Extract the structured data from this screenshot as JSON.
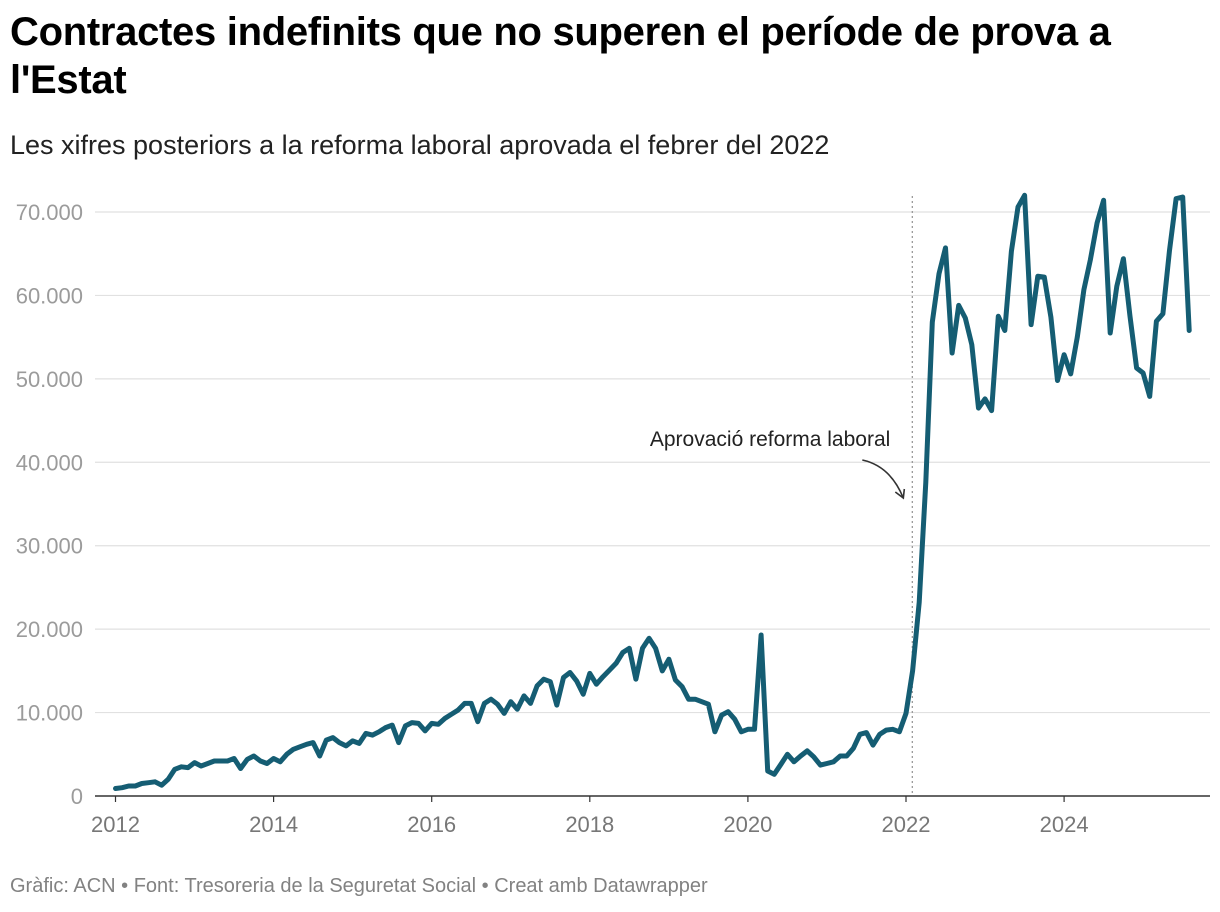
{
  "header": {
    "title": "Contractes indefinits que no superen el període de prova a l'Estat",
    "subtitle": "Les xifres posteriors a la reforma laboral aprovada el febrer del 2022"
  },
  "footer": {
    "text": "Gràfic: ACN • Font: Tresoreria de la Seguretat Social • Creat amb Datawrapper"
  },
  "colors": {
    "line": "#155d73",
    "grid": "#e1e1e1",
    "axis": "#333333",
    "reference": "#999999"
  },
  "chart_data": {
    "type": "line",
    "title": "Contractes indefinits que no superen el període de prova a l'Estat",
    "subtitle": "Les xifres posteriors a la reforma laboral aprovada el febrer del 2022",
    "xlabel": "",
    "ylabel": "",
    "xlim": [
      2012,
      2025.75
    ],
    "ylim": [
      0,
      72000
    ],
    "grid": true,
    "y_ticks": [
      0,
      10000,
      20000,
      30000,
      40000,
      50000,
      60000,
      70000
    ],
    "y_tick_labels": [
      "0",
      "10.000",
      "20.000",
      "30.000",
      "40.000",
      "50.000",
      "60.000",
      "70.000"
    ],
    "x_ticks": [
      2012,
      2014,
      2016,
      2018,
      2020,
      2022,
      2024
    ],
    "x_tick_labels": [
      "2012",
      "2014",
      "2016",
      "2018",
      "2020",
      "2022",
      "2024"
    ],
    "reference_line": {
      "x": 2022.08,
      "label": "Aprovació reforma laboral"
    },
    "series": [
      {
        "name": "Contractes indefinits que no superen el període de prova",
        "x": [
          2012.0,
          2012.083,
          2012.167,
          2012.25,
          2012.333,
          2012.417,
          2012.5,
          2012.583,
          2012.667,
          2012.75,
          2012.833,
          2012.917,
          2013.0,
          2013.083,
          2013.167,
          2013.25,
          2013.333,
          2013.417,
          2013.5,
          2013.583,
          2013.667,
          2013.75,
          2013.833,
          2013.917,
          2014.0,
          2014.083,
          2014.167,
          2014.25,
          2014.333,
          2014.417,
          2014.5,
          2014.583,
          2014.667,
          2014.75,
          2014.833,
          2014.917,
          2015.0,
          2015.083,
          2015.167,
          2015.25,
          2015.333,
          2015.417,
          2015.5,
          2015.583,
          2015.667,
          2015.75,
          2015.833,
          2015.917,
          2016.0,
          2016.083,
          2016.167,
          2016.25,
          2016.333,
          2016.417,
          2016.5,
          2016.583,
          2016.667,
          2016.75,
          2016.833,
          2016.917,
          2017.0,
          2017.083,
          2017.167,
          2017.25,
          2017.333,
          2017.417,
          2017.5,
          2017.583,
          2017.667,
          2017.75,
          2017.833,
          2017.917,
          2018.0,
          2018.083,
          2018.167,
          2018.25,
          2018.333,
          2018.417,
          2018.5,
          2018.583,
          2018.667,
          2018.75,
          2018.833,
          2018.917,
          2019.0,
          2019.083,
          2019.167,
          2019.25,
          2019.333,
          2019.417,
          2019.5,
          2019.583,
          2019.667,
          2019.75,
          2019.833,
          2019.917,
          2020.0,
          2020.083,
          2020.167,
          2020.25,
          2020.333,
          2020.417,
          2020.5,
          2020.583,
          2020.667,
          2020.75,
          2020.833,
          2020.917,
          2021.0,
          2021.083,
          2021.167,
          2021.25,
          2021.333,
          2021.417,
          2021.5,
          2021.583,
          2021.667,
          2021.75,
          2021.833,
          2021.917,
          2022.0,
          2022.083,
          2022.167,
          2022.25,
          2022.333,
          2022.417,
          2022.5,
          2022.583,
          2022.667,
          2022.75,
          2022.833,
          2022.917,
          2023.0,
          2023.083,
          2023.167,
          2023.25,
          2023.333,
          2023.417,
          2023.5,
          2023.583,
          2023.667,
          2023.75,
          2023.833,
          2023.917,
          2024.0,
          2024.083,
          2024.167,
          2024.25,
          2024.333,
          2024.417,
          2024.5,
          2024.583,
          2024.667,
          2024.75,
          2024.833,
          2024.917,
          2025.0,
          2025.083,
          2025.167,
          2025.25,
          2025.333,
          2025.417,
          2025.5,
          2025.583
        ],
        "values": [
          900,
          1000,
          1200,
          1200,
          1500,
          1600,
          1700,
          1300,
          2000,
          3200,
          3500,
          3400,
          4000,
          3600,
          3900,
          4200,
          4200,
          4200,
          4500,
          3300,
          4400,
          4800,
          4200,
          3900,
          4500,
          4100,
          5000,
          5600,
          5900,
          6200,
          6400,
          4800,
          6700,
          7000,
          6400,
          6000,
          6600,
          6300,
          7500,
          7300,
          7700,
          8200,
          8500,
          6400,
          8400,
          8800,
          8700,
          7800,
          8700,
          8600,
          9300,
          9800,
          10300,
          11100,
          11100,
          8900,
          11100,
          11600,
          11000,
          9900,
          11300,
          10400,
          12000,
          11100,
          13200,
          14000,
          13700,
          10900,
          14200,
          14800,
          13800,
          12200,
          14700,
          13400,
          14300,
          15100,
          15900,
          17200,
          17700,
          14000,
          17700,
          18900,
          17700,
          15000,
          16400,
          13900,
          13100,
          11600,
          11600,
          11300,
          11000,
          7700,
          9700,
          10100,
          9200,
          7700,
          8000,
          8000,
          19300,
          3000,
          2600,
          3800,
          5000,
          4100,
          4800,
          5400,
          4700,
          3700,
          3900,
          4100,
          4800,
          4800,
          5700,
          7400,
          7600,
          6100,
          7400,
          7900,
          8000,
          7700,
          9900,
          15000,
          23200,
          37600,
          56800,
          62600,
          65700,
          53100,
          58800,
          57300,
          54100,
          46500,
          47600,
          46200,
          57500,
          55800,
          65300,
          70600,
          72000,
          56500,
          62300,
          62200,
          57400,
          49800,
          52900,
          50600,
          55000,
          60700,
          64300,
          68700,
          71400,
          55500,
          61100,
          64400,
          57600,
          51300,
          50700,
          47900,
          56900,
          57800,
          65400,
          71600,
          71800,
          55800
        ]
      }
    ]
  }
}
